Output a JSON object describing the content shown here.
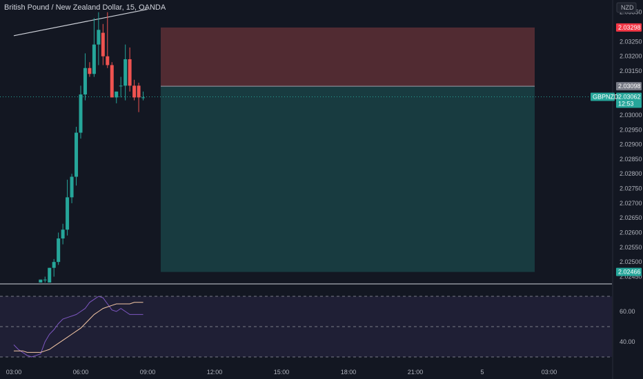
{
  "title": "British Pound / New Zealand Dollar, 15, OANDA",
  "currency_button": "NZD",
  "colors": {
    "background": "#131722",
    "up": "#26a69a",
    "down": "#ef5350",
    "stop_zone": "#e05a5a",
    "target_zone": "#26a69a",
    "rsi_line": "#7e57c2",
    "rsi_ma": "#f7c9a6",
    "trendline": "#d1d4dc"
  },
  "chart_data": [
    {
      "type": "candlestick",
      "symbol": "GBPNZD",
      "ylim": [
        2.0243,
        2.0334
      ],
      "price_ticks": [
        "2.03350",
        "2.03250",
        "2.03200",
        "2.03150",
        "2.03000",
        "2.02950",
        "2.02900",
        "2.02850",
        "2.02800",
        "2.02750",
        "2.02700",
        "2.02650",
        "2.02600",
        "2.02550",
        "2.02500",
        "2.02450"
      ],
      "time_ticks": [
        "03:00",
        "06:00",
        "09:00",
        "12:00",
        "15:00",
        "18:00",
        "21:00",
        "5",
        "03:00"
      ],
      "current_price": "2.03062",
      "countdown": "12:53",
      "position": {
        "type": "long",
        "entry": "2.03098",
        "stop": "2.03298",
        "target": "2.02466"
      },
      "candles": [
        {
          "t": 4.2,
          "o": 2.0243,
          "h": 2.0244,
          "l": 2.0243,
          "c": 2.0244
        },
        {
          "t": 4.4,
          "o": 2.0244,
          "h": 2.0245,
          "l": 2.0243,
          "c": 2.0244
        },
        {
          "t": 4.6,
          "o": 2.0243,
          "h": 2.0248,
          "l": 2.0243,
          "c": 2.0248
        },
        {
          "t": 4.8,
          "o": 2.0248,
          "h": 2.0251,
          "l": 2.0245,
          "c": 2.025
        },
        {
          "t": 5.0,
          "o": 2.025,
          "h": 2.026,
          "l": 2.0249,
          "c": 2.0258
        },
        {
          "t": 5.2,
          "o": 2.0258,
          "h": 2.0263,
          "l": 2.0256,
          "c": 2.0261
        },
        {
          "t": 5.4,
          "o": 2.0261,
          "h": 2.0278,
          "l": 2.0259,
          "c": 2.0272
        },
        {
          "t": 5.6,
          "o": 2.0272,
          "h": 2.028,
          "l": 2.027,
          "c": 2.0279
        },
        {
          "t": 5.8,
          "o": 2.0279,
          "h": 2.0296,
          "l": 2.0276,
          "c": 2.0294
        },
        {
          "t": 6.0,
          "o": 2.0294,
          "h": 2.031,
          "l": 2.0292,
          "c": 2.0307
        },
        {
          "t": 6.2,
          "o": 2.0307,
          "h": 2.0321,
          "l": 2.0305,
          "c": 2.0316
        },
        {
          "t": 6.4,
          "o": 2.0316,
          "h": 2.0318,
          "l": 2.0313,
          "c": 2.0314
        },
        {
          "t": 6.6,
          "o": 2.0314,
          "h": 2.0333,
          "l": 2.0313,
          "c": 2.0324
        },
        {
          "t": 6.8,
          "o": 2.0324,
          "h": 2.0335,
          "l": 2.0317,
          "c": 2.0329
        },
        {
          "t": 7.0,
          "o": 2.0328,
          "h": 2.0331,
          "l": 2.0317,
          "c": 2.032
        },
        {
          "t": 7.2,
          "o": 2.032,
          "h": 2.0335,
          "l": 2.0316,
          "c": 2.0317
        },
        {
          "t": 7.4,
          "o": 2.0317,
          "h": 2.0318,
          "l": 2.0306,
          "c": 2.0306
        },
        {
          "t": 7.6,
          "o": 2.0306,
          "h": 2.0308,
          "l": 2.0304,
          "c": 2.0308
        },
        {
          "t": 7.8,
          "o": 2.031,
          "h": 2.0313,
          "l": 2.0306,
          "c": 2.031
        },
        {
          "t": 8.0,
          "o": 2.031,
          "h": 2.0324,
          "l": 2.0305,
          "c": 2.0319
        },
        {
          "t": 8.2,
          "o": 2.0319,
          "h": 2.0323,
          "l": 2.0308,
          "c": 2.031
        },
        {
          "t": 8.4,
          "o": 2.031,
          "h": 2.0312,
          "l": 2.0305,
          "c": 2.0306
        },
        {
          "t": 8.6,
          "o": 2.031,
          "h": 2.0311,
          "l": 2.0301,
          "c": 2.0306
        },
        {
          "t": 8.8,
          "o": 2.0306,
          "h": 2.0308,
          "l": 2.0305,
          "c": 2.0306
        }
      ],
      "trendline": [
        {
          "t": 3.0,
          "p": 2.0327
        },
        {
          "t": 9.0,
          "p": 2.0336
        }
      ]
    },
    {
      "type": "line",
      "ylabel": "",
      "ylim": [
        30,
        70
      ],
      "ticks": [
        "60.00",
        "40.00"
      ],
      "dashed_levels": [
        70,
        50,
        30
      ],
      "series": [
        {
          "x": [
            3.0,
            3.2,
            3.4,
            3.6,
            3.8,
            4.0,
            4.2,
            4.4,
            4.6,
            4.8,
            5.0,
            5.2,
            5.4,
            5.6,
            5.8,
            6.0,
            6.2,
            6.4,
            6.6,
            6.8,
            7.0,
            7.2,
            7.4,
            7.6,
            7.8,
            8.0,
            8.2,
            8.4,
            8.6,
            8.8
          ],
          "values": [
            38,
            35,
            33,
            31,
            30,
            31,
            32,
            40,
            45,
            48,
            52,
            55,
            56,
            57,
            58,
            60,
            62,
            66,
            68,
            70,
            69,
            65,
            61,
            60,
            62,
            60,
            58,
            58,
            58,
            58
          ]
        },
        {
          "x": [
            3.0,
            3.2,
            3.4,
            3.6,
            3.8,
            4.0,
            4.2,
            4.4,
            4.6,
            4.8,
            5.0,
            5.2,
            5.4,
            5.6,
            5.8,
            6.0,
            6.2,
            6.4,
            6.6,
            6.8,
            7.0,
            7.2,
            7.4,
            7.6,
            7.8,
            8.0,
            8.2,
            8.4,
            8.6,
            8.8
          ],
          "values": [
            34,
            34,
            34,
            33,
            33,
            33,
            33,
            34,
            35,
            37,
            39,
            41,
            43,
            45,
            47,
            49,
            52,
            55,
            58,
            60,
            62,
            63,
            64,
            65,
            65,
            65,
            65,
            66,
            66,
            66
          ]
        }
      ]
    }
  ]
}
